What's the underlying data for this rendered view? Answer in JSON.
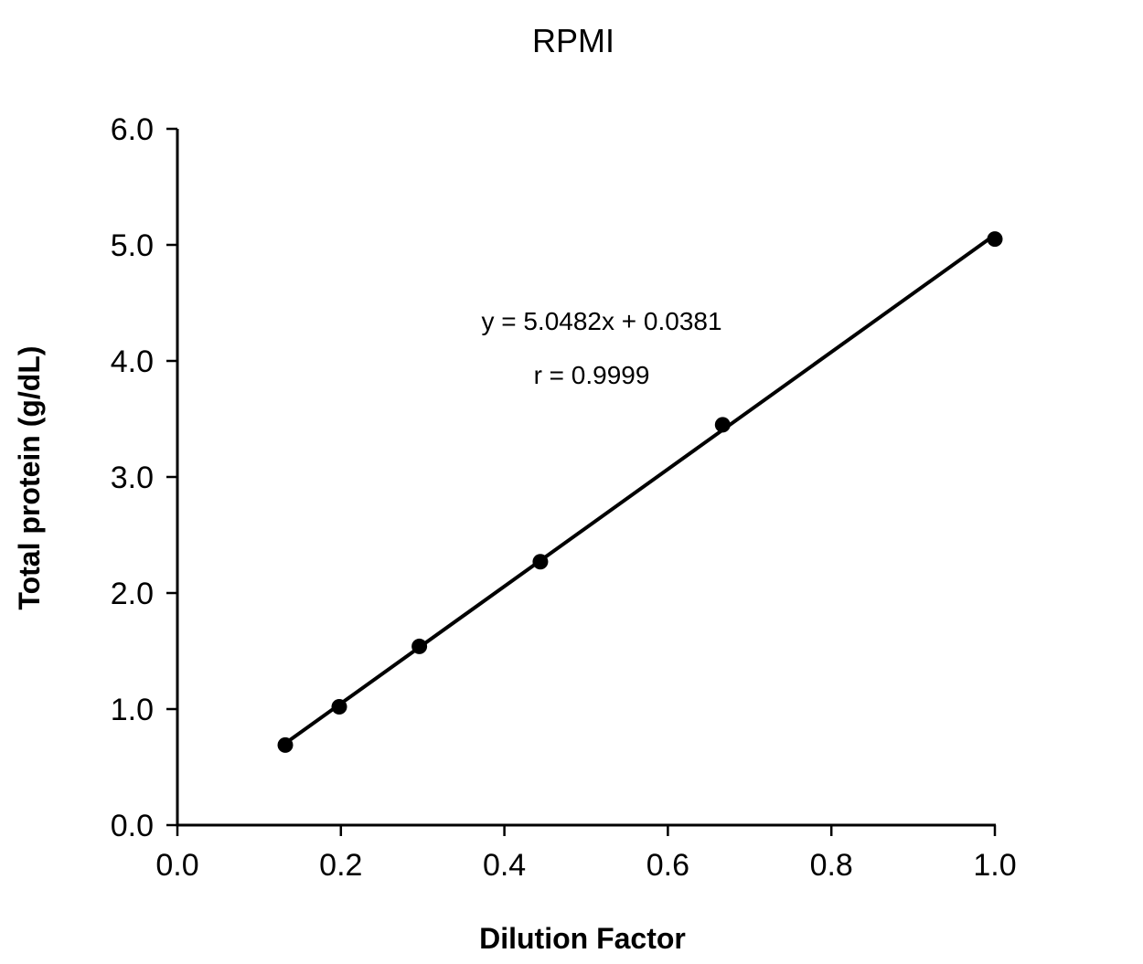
{
  "chart_data": {
    "type": "scatter",
    "title": "RPMI",
    "xlabel": "Dilution Factor",
    "ylabel": "Total protein (g/dL)",
    "xlim": [
      0.0,
      1.0
    ],
    "ylim": [
      0.0,
      6.0
    ],
    "x_ticks": [
      "0.0",
      "0.2",
      "0.4",
      "0.6",
      "0.8",
      "1.0"
    ],
    "y_ticks": [
      "0.0",
      "1.0",
      "2.0",
      "3.0",
      "4.0",
      "5.0",
      "6.0"
    ],
    "grid": false,
    "legend": "none",
    "series": [
      {
        "x": [
          0.132,
          0.198,
          0.296,
          0.444,
          0.667,
          1.0
        ],
        "y": [
          0.69,
          1.02,
          1.54,
          2.27,
          3.45,
          5.05
        ],
        "color": "#000000",
        "marker": "circle"
      }
    ],
    "trendline": {
      "type": "linear",
      "slope": 5.0482,
      "intercept": 0.0381,
      "x_range": [
        0.132,
        1.0
      ],
      "color": "#000000"
    },
    "annotations": [
      "y = 5.0482x + 0.0381",
      "r = 0.9999"
    ]
  }
}
